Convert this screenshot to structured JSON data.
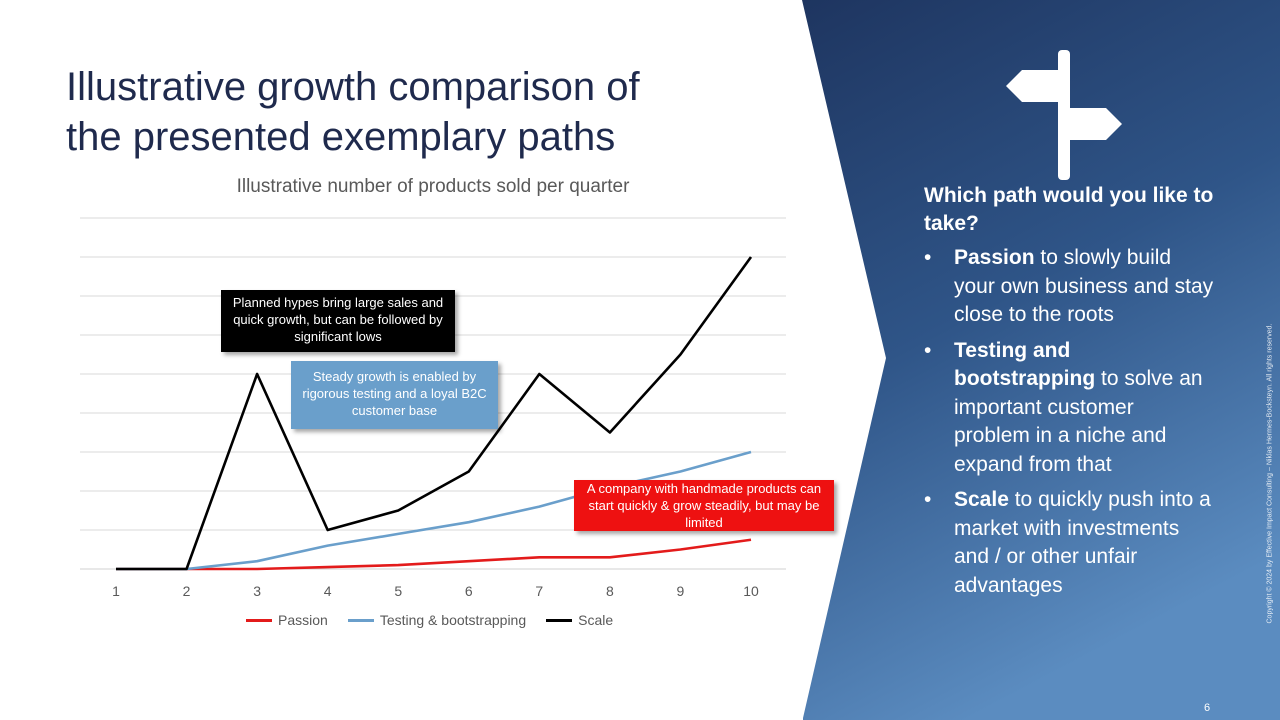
{
  "slide": {
    "title_line1": "Illustrative growth comparison of",
    "title_line2": "the presented exemplary paths",
    "page_number": "6",
    "copyright": "Copyright © 2024 by Effective Impact Consulting – Niklas Hermes-Bocksteyn. All rights reserved."
  },
  "side_panel": {
    "heading": "Which path would you like to take?",
    "items": [
      {
        "bold": "Passion",
        "rest": " to slowly build your own business and stay close to the roots"
      },
      {
        "bold": "Testing and bootstrapping",
        "rest": " to solve an important customer problem in a niche and expand from that"
      },
      {
        "bold": "Scale",
        "rest": " to quickly push into a market with investments and / or other unfair advantages"
      }
    ],
    "bullet": "•",
    "icon": "signpost-icon"
  },
  "callouts": {
    "scale": "Planned hypes bring large sales and quick growth, but can be followed by significant lows",
    "testing": "Steady growth is enabled by rigorous testing and a loyal B2C customer base",
    "passion": "A company with handmade products can start quickly & grow steadily, but may be limited"
  },
  "colors": {
    "title": "#1f2a4d",
    "panel_dark": "#1e3560",
    "panel_light": "#5b8cc0",
    "passion": "#e31b1b",
    "testing": "#6a9fcb",
    "scale": "#000000"
  },
  "chart_data": {
    "type": "line",
    "title": "Illustrative number of products sold per quarter",
    "x": [
      1,
      2,
      3,
      4,
      5,
      6,
      7,
      8,
      9,
      10
    ],
    "ylim": [
      0,
      9
    ],
    "grid": true,
    "legend_position": "bottom",
    "series": [
      {
        "name": "Passion",
        "color": "#e31b1b",
        "values": [
          0,
          0,
          0,
          0.05,
          0.1,
          0.2,
          0.3,
          0.3,
          0.5,
          0.75
        ]
      },
      {
        "name": "Testing & bootstrapping",
        "color": "#6a9fcb",
        "values": [
          0,
          0,
          0.2,
          0.6,
          0.9,
          1.2,
          1.6,
          2.1,
          2.5,
          3.0
        ]
      },
      {
        "name": "Scale",
        "color": "#000000",
        "values": [
          0,
          0,
          5.0,
          1.0,
          1.5,
          2.5,
          5.0,
          3.5,
          5.5,
          8.0
        ]
      }
    ]
  }
}
